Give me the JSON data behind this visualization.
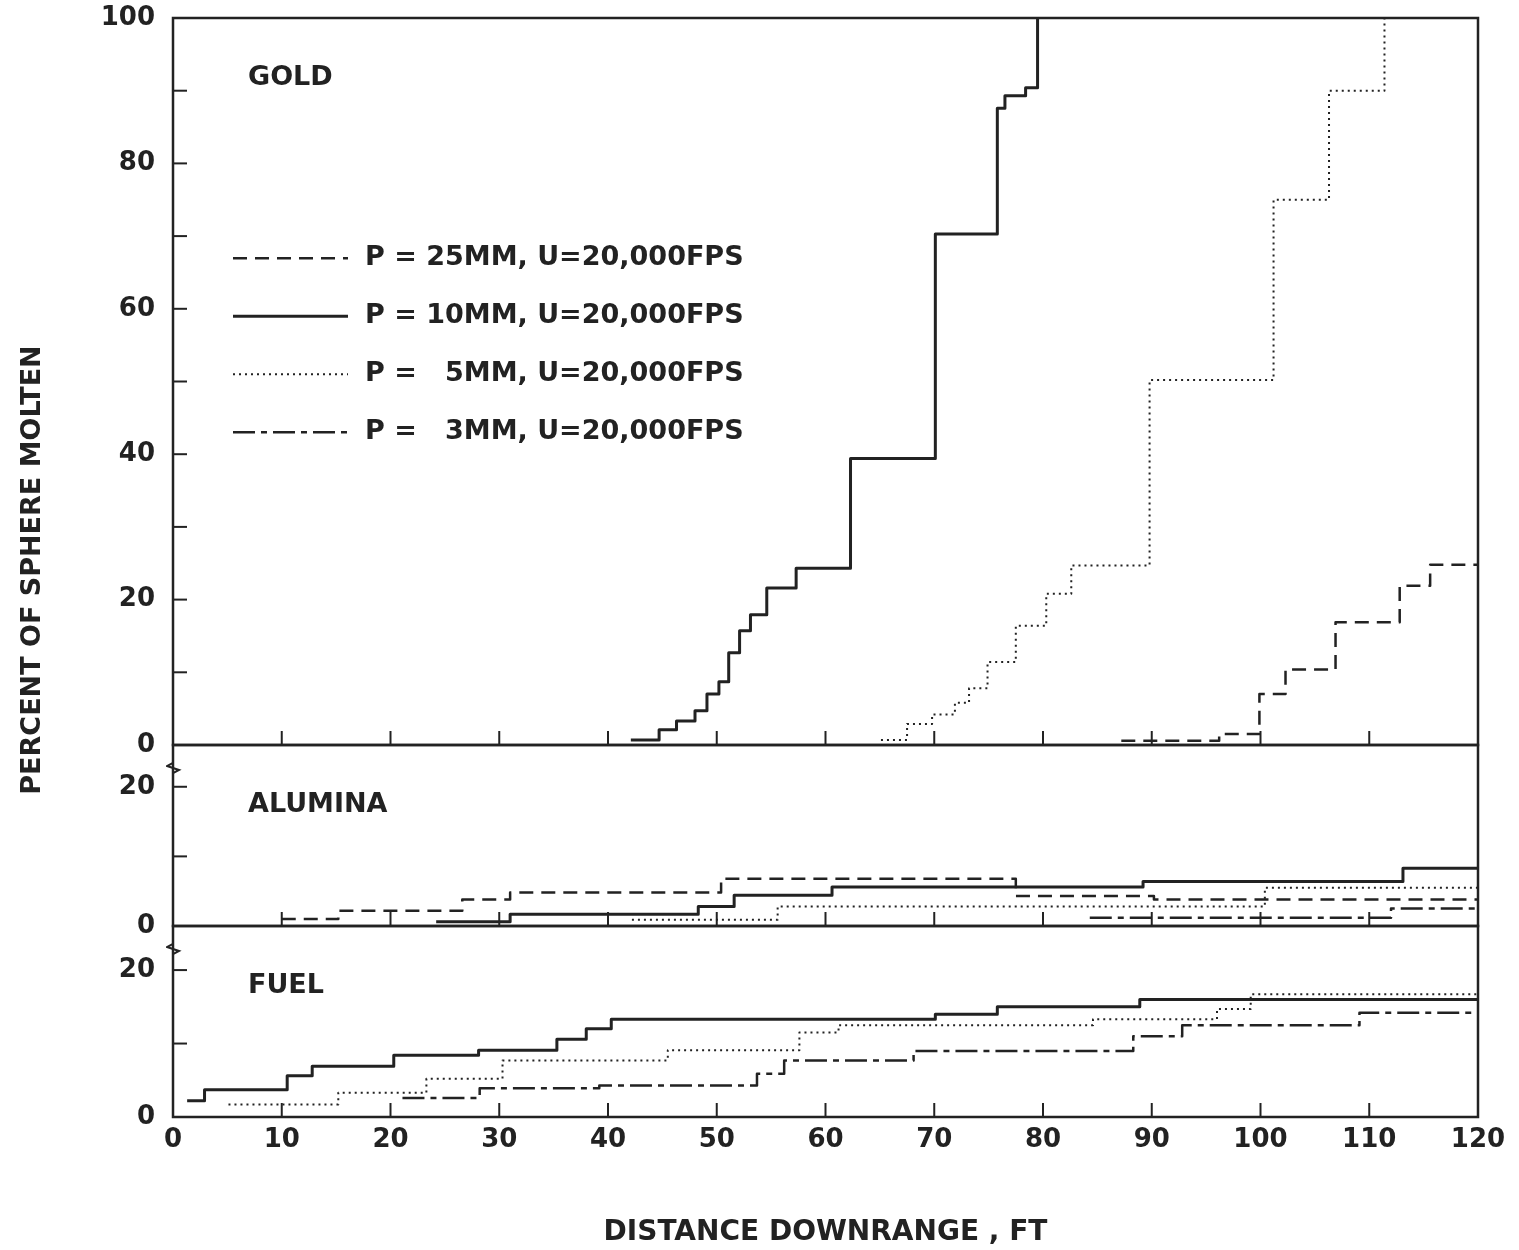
{
  "chart_data": [
    {
      "type": "step",
      "title": "GOLD",
      "ylabel": "PERCENT OF SPHERE MOLTEN",
      "xlim": [
        0,
        120
      ],
      "xticks": [
        0,
        10,
        20,
        30,
        40,
        50,
        60,
        70,
        80,
        90,
        100,
        110,
        120
      ],
      "ylim": [
        0,
        100
      ],
      "yticks": [
        0,
        {
          "value": 10,
          "label": null
        },
        20,
        {
          "value": 30,
          "label": null
        },
        40,
        {
          "value": 50,
          "label": null
        },
        60,
        {
          "value": 70,
          "label": null
        },
        80,
        {
          "value": 90,
          "label": null
        },
        100
      ],
      "tick_labels": "y",
      "grid": false,
      "legend": "left",
      "marker": "none",
      "series": [
        {
          "name": "P = 25MM, U=20,000FPS",
          "color": "#222222",
          "line_style": "dashed",
          "x": [
            87.2,
            96.2,
            99.9,
            102.3,
            106.9,
            112.8,
            115.6,
            120
          ],
          "values": [
            0.6,
            1.5,
            7.0,
            10.4,
            16.9,
            21.9,
            24.8,
            24.8
          ]
        },
        {
          "name": "P = 10MM, U=20,000FPS",
          "color": "#222222",
          "line_style": "solid",
          "x": [
            42.1,
            44.7,
            46.3,
            48.0,
            49.1,
            50.2,
            51.1,
            52.1,
            53.1,
            54.6,
            57.3,
            62.3,
            70.1,
            75.8,
            76.5,
            78.4,
            79.5
          ],
          "values": [
            0.7,
            2.1,
            3.3,
            4.7,
            7.0,
            8.7,
            12.7,
            15.7,
            17.9,
            21.6,
            24.3,
            39.4,
            70.3,
            87.6,
            89.3,
            90.4,
            100
          ]
        },
        {
          "name": "P =   5MM, U=20,000FPS",
          "color": "#222222",
          "line_style": "dotted",
          "x": [
            65.1,
            67.5,
            69.8,
            71.9,
            73.2,
            74.9,
            77.5,
            80.3,
            82.6,
            89.8,
            101.2,
            106.3,
            111.4
          ],
          "values": [
            0.7,
            2.9,
            4.2,
            5.8,
            7.8,
            11.4,
            16.4,
            20.8,
            24.7,
            50.2,
            75.0,
            90.0,
            100
          ]
        },
        {
          "name": "P =   3MM, U=20,000FPS",
          "color": "#222222",
          "line_style": "dashdot"
        }
      ]
    },
    {
      "type": "step",
      "title": "ALUMINA",
      "xlim": [
        0,
        120
      ],
      "xticks": [
        0,
        10,
        20,
        30,
        40,
        50,
        60,
        70,
        80,
        90,
        100,
        110,
        120
      ],
      "ylim": [
        0,
        26
      ],
      "yticks": [
        0,
        {
          "value": 10,
          "label": null
        },
        20
      ],
      "tick_labels": "y",
      "grid": false,
      "marker": "none",
      "series": [
        {
          "color": "#222222",
          "line_style": "dashed",
          "x": [
            10.0,
            15.2,
            26.6,
            31.0,
            50.4,
            77.5,
            90.2,
            120
          ],
          "values": [
            1.0,
            2.2,
            3.8,
            4.8,
            6.8,
            4.3,
            3.8,
            3.8
          ]
        },
        {
          "color": "#222222",
          "line_style": "solid",
          "x": [
            24.2,
            31.0,
            48.3,
            51.6,
            60.6,
            89.2,
            113.1,
            120
          ],
          "values": [
            0.6,
            1.7,
            2.8,
            4.4,
            5.6,
            6.4,
            8.3,
            8.3
          ]
        },
        {
          "color": "#222222",
          "line_style": "dotted",
          "x": [
            42.2,
            55.6,
            100.4,
            120
          ],
          "values": [
            0.9,
            2.8,
            5.5,
            5.5
          ]
        },
        {
          "color": "#222222",
          "line_style": "dashdot",
          "x": [
            84.3,
            112.0,
            120
          ],
          "values": [
            1.2,
            2.5,
            2.5
          ]
        }
      ]
    },
    {
      "type": "step",
      "title": "FUEL",
      "xlabel": "DISTANCE DOWNRANGE , FT",
      "xlim": [
        0,
        120
      ],
      "xticks": [
        0,
        10,
        20,
        30,
        40,
        50,
        60,
        70,
        80,
        90,
        100,
        110,
        120
      ],
      "ylim": [
        0,
        26
      ],
      "yticks": [
        0,
        {
          "value": 10,
          "label": null
        },
        20
      ],
      "grid": false,
      "marker": "none",
      "series": [
        {
          "color": "#222222",
          "line_style": "solid",
          "x": [
            1.3,
            2.9,
            10.5,
            12.8,
            20.3,
            28.1,
            35.3,
            38.0,
            40.3,
            70.1,
            75.8,
            88.9,
            120
          ],
          "values": [
            2.2,
            3.7,
            5.6,
            6.9,
            8.4,
            9.1,
            10.6,
            12.0,
            13.3,
            14.0,
            15.0,
            16.0,
            16.0
          ]
        },
        {
          "color": "#222222",
          "line_style": "dotted",
          "x": [
            5.1,
            15.2,
            23.3,
            30.3,
            45.5,
            57.6,
            61.2,
            84.6,
            96.0,
            99.1,
            120
          ],
          "values": [
            1.7,
            3.3,
            5.2,
            7.7,
            9.1,
            11.5,
            12.5,
            13.3,
            14.7,
            16.7,
            16.7
          ]
        },
        {
          "color": "#222222",
          "line_style": "dashdot",
          "x": [
            21.1,
            28.2,
            39.2,
            53.7,
            56.2,
            68.1,
            88.3,
            92.8,
            109.1,
            120
          ],
          "values": [
            2.6,
            3.9,
            4.3,
            5.9,
            7.7,
            9.0,
            11.0,
            12.5,
            14.2,
            14.2
          ]
        }
      ]
    }
  ]
}
